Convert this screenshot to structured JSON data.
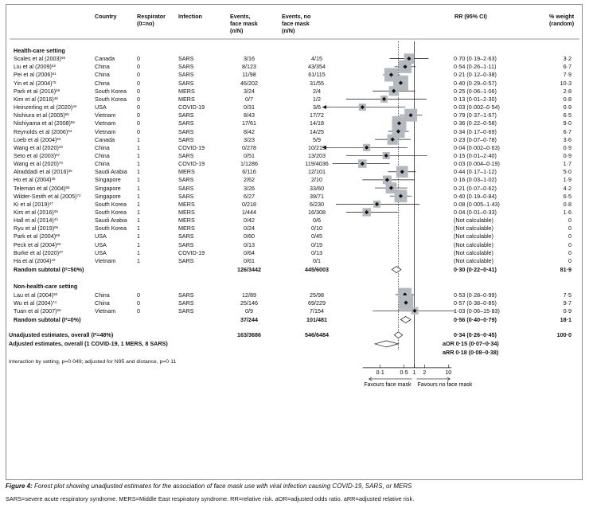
{
  "columns": {
    "country": "Country",
    "respirator": "Respirator\n(0=no)",
    "infection": "Infection",
    "events_mask": "Events,\nface mask\n(n/N)",
    "events_nomask": "Events, no\nface mask\n(n/N)",
    "rr": "RR (95% CI)",
    "weight": "% weight\n(random)"
  },
  "groups": [
    {
      "title": "Health-care setting",
      "subtotal_label": "Random subtotal (I²=50%)",
      "subtotal_events_mask": "126/3442",
      "subtotal_events_nomask": "445/6003",
      "subtotal_rr": "0·30 (0·22–0·41)",
      "subtotal_weight": "81·9",
      "studies": [
        {
          "study": "Scales et al (2003)",
          "ref": "66",
          "country": "Canada",
          "resp": "0",
          "inf": "SARS",
          "em": "3/16",
          "en": "4/15",
          "rr": "0·70 (0·19–2·63)",
          "w": "3·2"
        },
        {
          "study": "Liu et al (2009)",
          "ref": "52",
          "country": "China",
          "resp": "0",
          "inf": "SARS",
          "em": "8/123",
          "en": "43/354",
          "rr": "0·54 (0·26–1·11)",
          "w": "6·7"
        },
        {
          "study": "Pei et al (2006)",
          "ref": "61",
          "country": "China",
          "resp": "0",
          "inf": "SARS",
          "em": "11/98",
          "en": "61/115",
          "rr": "0·21 (0·12–0·38)",
          "w": "7·9"
        },
        {
          "study": "Yin et al (2004)",
          "ref": "75",
          "country": "China",
          "resp": "0",
          "inf": "SARS",
          "em": "46/202",
          "en": "31/55",
          "rr": "0·40 (0·29–0·57)",
          "w": "10·3"
        },
        {
          "study": "Park et al (2016)",
          "ref": "59",
          "country": "South Korea",
          "resp": "0",
          "inf": "MERS",
          "em": "3/24",
          "en": "2/4",
          "rr": "0·25 (0·06–1·06)",
          "w": "2·8"
        },
        {
          "study": "Kim et al (2016)",
          "ref": "48",
          "country": "South Korea",
          "resp": "0",
          "inf": "MERS",
          "em": "0/7",
          "en": "1/2",
          "rr": "0·13 (0·01–2·30)",
          "w": "0·8"
        },
        {
          "study": "Heinzerling et al (2020)",
          "ref": "44",
          "country": "USA",
          "resp": "0",
          "inf": "COVID-19",
          "em": "0/31",
          "en": "3/6",
          "rr": "0·03 (0·002–0·54)",
          "w": "0·9"
        },
        {
          "study": "Nishiura et al (2005)",
          "ref": "55",
          "country": "Vietnam",
          "resp": "0",
          "inf": "SARS",
          "em": "8/43",
          "en": "17/72",
          "rr": "0·79 (0·37–1·67)",
          "w": "6·5"
        },
        {
          "study": "Nishiyama et al (2008)",
          "ref": "56",
          "country": "Vietnam",
          "resp": "0",
          "inf": "SARS",
          "em": "17/61",
          "en": "14/18",
          "rr": "0·36 (0·22–0·58)",
          "w": "9·0"
        },
        {
          "study": "Reynolds et al (2006)",
          "ref": "64",
          "country": "Vietnam",
          "resp": "0",
          "inf": "SARS",
          "em": "8/42",
          "en": "14/25",
          "rr": "0·34 (0·17–0·69)",
          "w": "6·7"
        },
        {
          "study": "Loeb et al (2004)",
          "ref": "53",
          "country": "Canada",
          "resp": "1",
          "inf": "SARS",
          "em": "3/23",
          "en": "5/9",
          "rr": "0·23 (0·07–0·78)",
          "w": "3·6"
        },
        {
          "study": "Wang et al (2020)",
          "ref": "40",
          "country": "China",
          "resp": "1",
          "inf": "COVID-19",
          "em": "0/278",
          "en": "10/215",
          "rr": "0·04 (0·002–0·63)",
          "w": "0·9"
        },
        {
          "study": "Seto et al (2003)",
          "ref": "67",
          "country": "China",
          "resp": "1",
          "inf": "SARS",
          "em": "0/51",
          "en": "13/203",
          "rr": "0·15 (0·01–2·40)",
          "w": "0·9"
        },
        {
          "study": "Wang et al (2020)",
          "ref": "70",
          "country": "China",
          "resp": "1",
          "inf": "COVID-19",
          "em": "1/1286",
          "en": "119/4036",
          "rr": "0·03 (0·004–0·19)",
          "w": "1·7"
        },
        {
          "study": "Alraddadi et al (2016)",
          "ref": "36",
          "country": "Saudi Arabia",
          "resp": "1",
          "inf": "MERS",
          "em": "6/116",
          "en": "12/101",
          "rr": "0·44 (0·17–1·12)",
          "w": "5·0"
        },
        {
          "study": "Ho et al (2004)",
          "ref": "45",
          "country": "Singapore",
          "resp": "1",
          "inf": "SARS",
          "em": "2/62",
          "en": "2/10",
          "rr": "0·16 (0·03–1·02)",
          "w": "1·9"
        },
        {
          "study": "Teleman et al (2004)",
          "ref": "68",
          "country": "Singapore",
          "resp": "1",
          "inf": "SARS",
          "em": "3/26",
          "en": "33/60",
          "rr": "0·21 (0·07–0·62)",
          "w": "4·2"
        },
        {
          "study": "Wilder-Smith et al (2005)",
          "ref": "72",
          "country": "Singapore",
          "resp": "1",
          "inf": "SARS",
          "em": "6/27",
          "en": "39/71",
          "rr": "0·40 (0·19–0·84)",
          "w": "6·5"
        },
        {
          "study": "Ki et al (2019)",
          "ref": "47",
          "country": "South Korea",
          "resp": "1",
          "inf": "MERS",
          "em": "0/218",
          "en": "6/230",
          "rr": "0·08 (0·005–1·43)",
          "w": "0·8"
        },
        {
          "study": "Kim et al (2016)",
          "ref": "49",
          "country": "South Korea",
          "resp": "1",
          "inf": "MERS",
          "em": "1/444",
          "en": "16/308",
          "rr": "0·04 (0·01–0·33)",
          "w": "1·6"
        },
        {
          "study": "Hall et al (2014)",
          "ref": "43",
          "country": "Saudi Arabia",
          "resp": "1",
          "inf": "MERS",
          "em": "0/42",
          "en": "0/6",
          "rr": "(Not calculable)",
          "w": "0"
        },
        {
          "study": "Ryu et al (2019)",
          "ref": "65",
          "country": "South Korea",
          "resp": "1",
          "inf": "MERS",
          "em": "0/24",
          "en": "0/10",
          "rr": "(Not calculable)",
          "w": "0"
        },
        {
          "study": "Park et al (2004)",
          "ref": "58",
          "country": "USA",
          "resp": "1",
          "inf": "SARS",
          "em": "0/60",
          "en": "0/45",
          "rr": "(Not calculable)",
          "w": "0"
        },
        {
          "study": "Peck et al (2004)",
          "ref": "60",
          "country": "USA",
          "resp": "1",
          "inf": "SARS",
          "em": "0/13",
          "en": "0/19",
          "rr": "(Not calculable)",
          "w": "0"
        },
        {
          "study": "Burke et al (2020)",
          "ref": "37",
          "country": "USA",
          "resp": "1",
          "inf": "COVID-19",
          "em": "0/64",
          "en": "0/13",
          "rr": "(Not calculable)",
          "w": "0"
        },
        {
          "study": "Ha et al (2004)",
          "ref": "42",
          "country": "Vietnam",
          "resp": "1",
          "inf": "SARS",
          "em": "0/61",
          "en": "0/1",
          "rr": "(Not calculable)",
          "w": "0"
        }
      ]
    },
    {
      "title": "Non-health-care setting",
      "subtotal_label": "Random subtotal (I²=0%)",
      "subtotal_events_mask": "37/244",
      "subtotal_events_nomask": "101/481",
      "subtotal_rr": "0·56 (0·40–0·79)",
      "subtotal_weight": "18·1",
      "studies": [
        {
          "study": "Lau et al (2004)",
          "ref": "50",
          "country": "China",
          "resp": "0",
          "inf": "SARS",
          "em": "12/89",
          "en": "25/98",
          "rr": "0·53 (0·28–0·99)",
          "w": "7·5"
        },
        {
          "study": "Wu et al (2004)",
          "ref": "74",
          "country": "China",
          "resp": "0",
          "inf": "SARS",
          "em": "25/146",
          "en": "69/229",
          "rr": "0·57 (0·38–0·85)",
          "w": "9·7"
        },
        {
          "study": "Tuan et al (2007)",
          "ref": "69",
          "country": "Vietnam",
          "resp": "0",
          "inf": "SARS",
          "em": "0/9",
          "en": "7/154",
          "rr": "1·03 (0·06–15·83)",
          "w": "0·9"
        }
      ]
    }
  ],
  "overall": {
    "unadjusted_label": "Unadjusted estimates, overall (I²=48%)",
    "unadjusted_em": "163/3686",
    "unadjusted_en": "546/6484",
    "unadjusted_rr": "0·34 (0·26–0·45)",
    "unadjusted_w": "100·0",
    "adjusted_label": "Adjusted estimates, overall (1 COVID-19, 1 MERS, 8 SARS)",
    "aor": "aOR  0·15 (0·07–0·34)",
    "arr": "aRR  0·18 (0·08–0·38)"
  },
  "interaction_note": "Interaction by setting, p=0·049; adjusted for N95 and distance, p=0·11",
  "axis": {
    "ticks": [
      {
        "label": "0·1",
        "value": 0.1
      },
      {
        "label": "0·5",
        "value": 0.5
      },
      {
        "label": "1",
        "value": 1
      },
      {
        "label": "2",
        "value": 2
      },
      {
        "label": "10",
        "value": 10
      }
    ],
    "favours_left": "Favours face mask",
    "favours_right": "Favours no face mask"
  },
  "chart_data": {
    "type": "forest",
    "scale": "log",
    "xlim": [
      0.002,
      16
    ],
    "null_line": 1,
    "pooled_line": 0.34,
    "points": [
      {
        "rr": 0.7,
        "lo": 0.19,
        "hi": 2.63,
        "w": 3.2
      },
      {
        "rr": 0.54,
        "lo": 0.26,
        "hi": 1.11,
        "w": 6.7
      },
      {
        "rr": 0.21,
        "lo": 0.12,
        "hi": 0.38,
        "w": 7.9
      },
      {
        "rr": 0.4,
        "lo": 0.29,
        "hi": 0.57,
        "w": 10.3
      },
      {
        "rr": 0.25,
        "lo": 0.06,
        "hi": 1.06,
        "w": 2.8
      },
      {
        "rr": 0.13,
        "lo": 0.01,
        "hi": 2.3,
        "w": 0.8
      },
      {
        "rr": 0.03,
        "lo": 0.002,
        "hi": 0.54,
        "w": 0.9
      },
      {
        "rr": 0.79,
        "lo": 0.37,
        "hi": 1.67,
        "w": 6.5
      },
      {
        "rr": 0.36,
        "lo": 0.22,
        "hi": 0.58,
        "w": 9.0
      },
      {
        "rr": 0.34,
        "lo": 0.17,
        "hi": 0.69,
        "w": 6.7
      },
      {
        "rr": 0.23,
        "lo": 0.07,
        "hi": 0.78,
        "w": 3.6
      },
      {
        "rr": 0.04,
        "lo": 0.002,
        "hi": 0.63,
        "w": 0.9
      },
      {
        "rr": 0.15,
        "lo": 0.01,
        "hi": 2.4,
        "w": 0.9
      },
      {
        "rr": 0.03,
        "lo": 0.004,
        "hi": 0.19,
        "w": 1.7
      },
      {
        "rr": 0.44,
        "lo": 0.17,
        "hi": 1.12,
        "w": 5.0
      },
      {
        "rr": 0.16,
        "lo": 0.03,
        "hi": 1.02,
        "w": 1.9
      },
      {
        "rr": 0.21,
        "lo": 0.07,
        "hi": 0.62,
        "w": 4.2
      },
      {
        "rr": 0.4,
        "lo": 0.19,
        "hi": 0.84,
        "w": 6.5
      },
      {
        "rr": 0.08,
        "lo": 0.005,
        "hi": 1.43,
        "w": 0.8
      },
      {
        "rr": 0.04,
        "lo": 0.01,
        "hi": 0.33,
        "w": 1.6
      },
      null,
      null,
      null,
      null,
      null,
      null,
      {
        "rr": 0.53,
        "lo": 0.28,
        "hi": 0.99,
        "w": 7.5
      },
      {
        "rr": 0.57,
        "lo": 0.38,
        "hi": 0.85,
        "w": 9.7
      },
      {
        "rr": 1.03,
        "lo": 0.06,
        "hi": 15.83,
        "w": 0.9
      }
    ],
    "diamonds": [
      {
        "rr": 0.3,
        "lo": 0.22,
        "hi": 0.41
      },
      {
        "rr": 0.56,
        "lo": 0.4,
        "hi": 0.79
      },
      {
        "rr": 0.34,
        "lo": 0.26,
        "hi": 0.45
      },
      {
        "rr": 0.15,
        "lo": 0.07,
        "hi": 0.34
      }
    ]
  },
  "caption_label": "Figure 4:",
  "caption_text": " Forest plot showing unadjusted estimates for the association of face mask use with viral infection causing COVID-19, SARS, or MERS",
  "footnote": "SARS=severe acute respiratory syndrome. MERS=Middle East respiratory syndrome. RR=relative risk. aOR=adjusted odds ratio. aRR=adjusted relative risk."
}
